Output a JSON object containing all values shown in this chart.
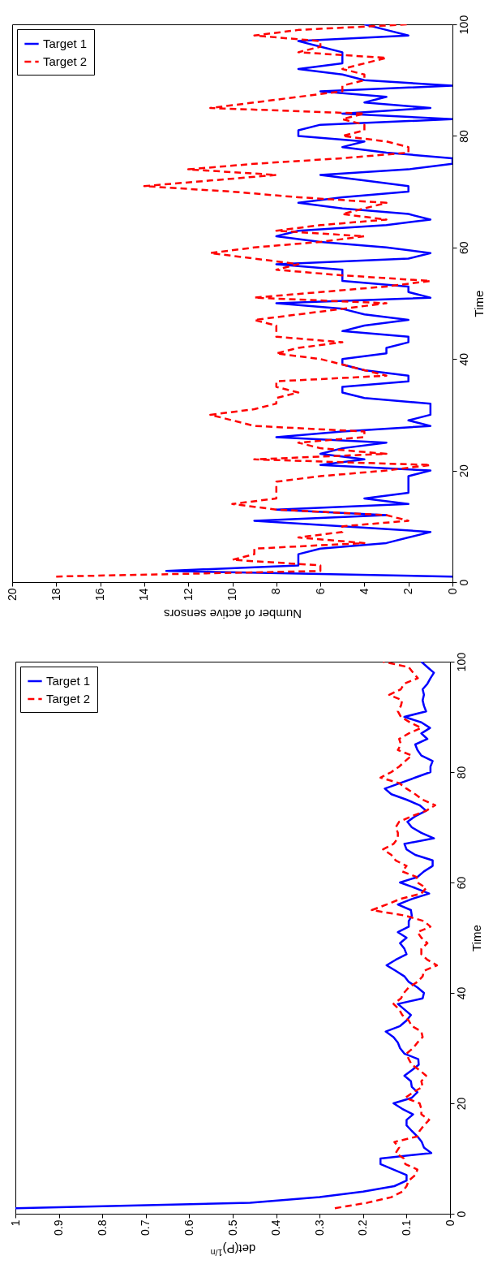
{
  "chart_data": [
    {
      "type": "line",
      "xlabel": "Number of active sensors",
      "ylabel": "Time",
      "xlim": [
        20,
        0
      ],
      "ylim": [
        0,
        100
      ],
      "xticks": [
        20,
        18,
        16,
        14,
        12,
        10,
        8,
        6,
        4,
        2,
        0
      ],
      "yticks": [
        0,
        20,
        40,
        60,
        80,
        100
      ],
      "legend": "top left",
      "series": [
        {
          "name": "Target 1",
          "color": "#0000ff",
          "line_style": "solid",
          "x": [
            0,
            13,
            7,
            7,
            7,
            6,
            3,
            2,
            1,
            5,
            9,
            3,
            8,
            2,
            4,
            2,
            2,
            2,
            2,
            1,
            6,
            4,
            6,
            5,
            3,
            8,
            5,
            1,
            2,
            1,
            1,
            1,
            4,
            5,
            5,
            2,
            2,
            4,
            5,
            5,
            3,
            3,
            2,
            2,
            5,
            4,
            2,
            4,
            5,
            8,
            1,
            2,
            2,
            5,
            5,
            5,
            8,
            2,
            1,
            3,
            6,
            8,
            7,
            3,
            1,
            2,
            5,
            7,
            5,
            2,
            2,
            4,
            6,
            2,
            0,
            0,
            3,
            5,
            4,
            7,
            7,
            6,
            0,
            5,
            1,
            4,
            3,
            6,
            0,
            4,
            5,
            7,
            5,
            5,
            5,
            6,
            7,
            2,
            3,
            4
          ],
          "values": [
            1,
            2,
            3,
            4,
            5,
            6,
            7,
            8,
            9,
            10,
            11,
            12,
            13,
            14,
            15,
            16,
            17,
            18,
            19,
            20,
            21,
            22,
            23,
            24,
            25,
            26,
            27,
            28,
            29,
            30,
            31,
            32,
            33,
            34,
            35,
            36,
            37,
            38,
            39,
            40,
            41,
            42,
            43,
            44,
            45,
            46,
            47,
            48,
            49,
            50,
            51,
            52,
            53,
            54,
            55,
            56,
            57,
            58,
            59,
            60,
            61,
            62,
            63,
            64,
            65,
            66,
            67,
            68,
            69,
            70,
            71,
            72,
            73,
            74,
            75,
            76,
            77,
            78,
            79,
            80,
            81,
            82,
            83,
            84,
            85,
            86,
            87,
            88,
            89,
            90,
            91,
            92,
            93,
            94,
            95,
            96,
            97,
            98,
            99,
            100
          ]
        },
        {
          "name": "Target 2",
          "color": "#ff0000",
          "line_style": "dashed",
          "x": [
            18,
            6,
            6,
            10,
            9,
            9,
            4,
            7,
            5,
            5,
            2,
            3,
            8,
            10,
            8,
            8,
            8,
            8,
            6,
            3,
            1,
            9,
            3,
            6,
            7,
            4,
            4,
            9,
            10,
            11,
            9,
            8,
            8,
            7,
            8,
            8,
            3,
            4,
            5,
            6,
            8,
            7,
            5,
            8,
            8,
            8,
            9,
            7,
            5,
            3,
            9,
            6,
            3,
            1,
            5,
            8,
            7,
            9,
            11,
            9,
            6,
            4,
            8,
            6,
            3,
            5,
            4,
            3,
            7,
            10,
            14,
            11,
            8,
            12,
            9,
            5,
            2,
            2,
            3,
            5,
            4,
            4,
            5,
            4,
            11,
            9,
            7,
            5,
            5,
            4,
            4,
            5,
            4,
            3,
            7,
            6,
            6,
            9,
            7,
            2
          ],
          "values": [
            1,
            2,
            3,
            4,
            5,
            6,
            7,
            8,
            9,
            10,
            11,
            12,
            13,
            14,
            15,
            16,
            17,
            18,
            19,
            20,
            21,
            22,
            23,
            24,
            25,
            26,
            27,
            28,
            29,
            30,
            31,
            32,
            33,
            34,
            35,
            36,
            37,
            38,
            39,
            40,
            41,
            42,
            43,
            44,
            45,
            46,
            47,
            48,
            49,
            50,
            51,
            52,
            53,
            54,
            55,
            56,
            57,
            58,
            59,
            60,
            61,
            62,
            63,
            64,
            65,
            66,
            67,
            68,
            69,
            70,
            71,
            72,
            73,
            74,
            75,
            76,
            77,
            78,
            79,
            80,
            81,
            82,
            83,
            84,
            85,
            86,
            87,
            88,
            89,
            90,
            91,
            92,
            93,
            94,
            95,
            96,
            97,
            98,
            99,
            100
          ]
        }
      ]
    },
    {
      "type": "line",
      "xlabel": "det(P)$^{1/n}$",
      "ylabel": "Time",
      "xlim": [
        1,
        0
      ],
      "ylim": [
        0,
        100
      ],
      "xticks": [
        1,
        0.9,
        0.8,
        0.7,
        0.6,
        0.5,
        0.4,
        0.3,
        0.2,
        0.1,
        0
      ],
      "yticks": [
        0,
        20,
        40,
        60,
        80,
        100
      ],
      "legend": "top left",
      "series": [
        {
          "name": "Target 1",
          "color": "#0000ff",
          "line_style": "solid",
          "x": [
            1.0,
            0.46,
            0.3,
            0.2,
            0.128,
            0.1,
            0.1,
            0.13,
            0.16,
            0.16,
            0.043,
            0.06,
            0.065,
            0.075,
            0.088,
            0.1,
            0.1,
            0.085,
            0.11,
            0.13,
            0.088,
            0.075,
            0.088,
            0.09,
            0.105,
            0.088,
            0.072,
            0.073,
            0.105,
            0.115,
            0.12,
            0.13,
            0.148,
            0.115,
            0.1,
            0.09,
            0.105,
            0.12,
            0.063,
            0.06,
            0.075,
            0.095,
            0.105,
            0.125,
            0.146,
            0.125,
            0.1,
            0.105,
            0.115,
            0.1,
            0.12,
            0.095,
            0.095,
            0.088,
            0.09,
            0.12,
            0.088,
            0.048,
            0.08,
            0.115,
            0.075,
            0.06,
            0.04,
            0.04,
            0.08,
            0.1,
            0.105,
            0.037,
            0.066,
            0.088,
            0.098,
            0.08,
            0.055,
            0.07,
            0.1,
            0.135,
            0.15,
            0.115,
            0.08,
            0.045,
            0.045,
            0.04,
            0.066,
            0.075,
            0.08,
            0.052,
            0.066,
            0.046,
            0.066,
            0.105,
            0.055,
            0.06,
            0.063,
            0.06,
            0.063,
            0.052,
            0.045,
            0.037,
            0.052,
            0.066
          ],
          "values": [
            1,
            2,
            3,
            4,
            5,
            6,
            7,
            8,
            9,
            10,
            11,
            12,
            13,
            14,
            15,
            16,
            17,
            18,
            19,
            20,
            21,
            22,
            23,
            24,
            25,
            26,
            27,
            28,
            29,
            30,
            31,
            32,
            33,
            34,
            35,
            36,
            37,
            38,
            39,
            40,
            41,
            42,
            43,
            44,
            45,
            46,
            47,
            48,
            49,
            50,
            51,
            52,
            53,
            54,
            55,
            56,
            57,
            58,
            59,
            60,
            61,
            62,
            63,
            64,
            65,
            66,
            67,
            68,
            69,
            70,
            71,
            72,
            73,
            74,
            75,
            76,
            77,
            78,
            79,
            80,
            81,
            82,
            83,
            84,
            85,
            86,
            87,
            88,
            89,
            90,
            91,
            92,
            93,
            94,
            95,
            96,
            97,
            98,
            99,
            100
          ]
        },
        {
          "name": "Target 2",
          "color": "#ff0000",
          "line_style": "dashed",
          "x": [
            0.265,
            0.19,
            0.135,
            0.11,
            0.1,
            0.095,
            0.08,
            0.075,
            0.103,
            0.106,
            0.125,
            0.117,
            0.128,
            0.075,
            0.07,
            0.06,
            0.048,
            0.066,
            0.066,
            0.07,
            0.103,
            0.085,
            0.063,
            0.066,
            0.055,
            0.07,
            0.088,
            0.095,
            0.1,
            0.085,
            0.075,
            0.063,
            0.066,
            0.088,
            0.095,
            0.11,
            0.117,
            0.13,
            0.113,
            0.106,
            0.095,
            0.075,
            0.063,
            0.06,
            0.03,
            0.052,
            0.066,
            0.066,
            0.052,
            0.066,
            0.075,
            0.045,
            0.06,
            0.103,
            0.18,
            0.146,
            0.115,
            0.066,
            0.055,
            0.075,
            0.077,
            0.11,
            0.1,
            0.125,
            0.135,
            0.154,
            0.13,
            0.12,
            0.12,
            0.125,
            0.117,
            0.088,
            0.055,
            0.034,
            0.063,
            0.08,
            0.1,
            0.117,
            0.16,
            0.135,
            0.117,
            0.103,
            0.088,
            0.12,
            0.113,
            0.117,
            0.095,
            0.066,
            0.092,
            0.113,
            0.12,
            0.113,
            0.11,
            0.14,
            0.113,
            0.106,
            0.074,
            0.085,
            0.095,
            0.154
          ],
          "values": [
            1,
            2,
            3,
            4,
            5,
            6,
            7,
            8,
            9,
            10,
            11,
            12,
            13,
            14,
            15,
            16,
            17,
            18,
            19,
            20,
            21,
            22,
            23,
            24,
            25,
            26,
            27,
            28,
            29,
            30,
            31,
            32,
            33,
            34,
            35,
            36,
            37,
            38,
            39,
            40,
            41,
            42,
            43,
            44,
            45,
            46,
            47,
            48,
            49,
            50,
            51,
            52,
            53,
            54,
            55,
            56,
            57,
            58,
            59,
            60,
            61,
            62,
            63,
            64,
            65,
            66,
            67,
            68,
            69,
            70,
            71,
            72,
            73,
            74,
            75,
            76,
            77,
            78,
            79,
            80,
            81,
            82,
            83,
            84,
            85,
            86,
            87,
            88,
            89,
            90,
            91,
            92,
            93,
            94,
            95,
            96,
            97,
            98,
            99,
            100
          ]
        }
      ]
    }
  ]
}
